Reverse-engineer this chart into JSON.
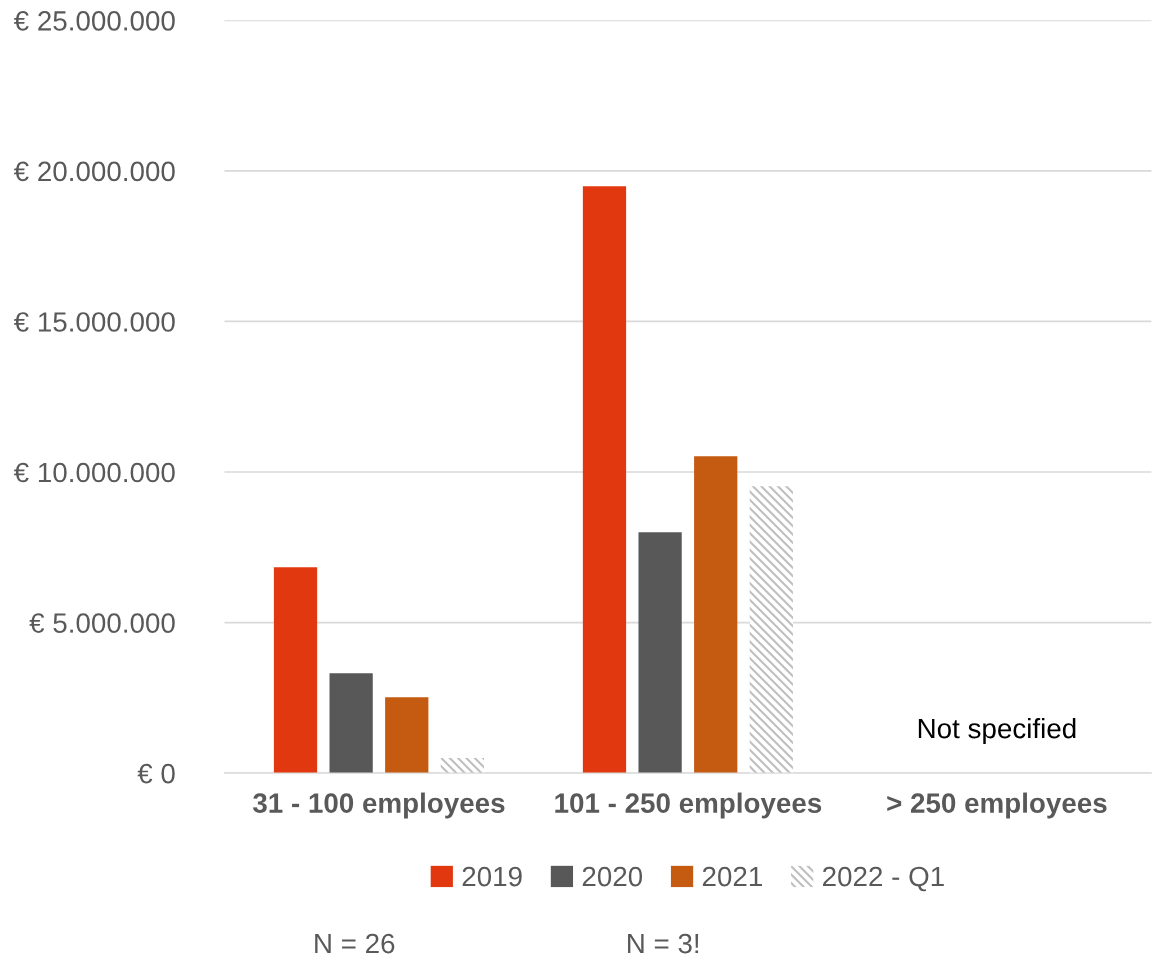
{
  "chart_data": {
    "type": "bar",
    "categories": [
      "31 - 100 employees",
      "101 - 250 employees",
      "> 250 employees"
    ],
    "series": [
      {
        "name": "2019",
        "color": "#e2380f",
        "values": [
          6840000,
          19490000,
          null
        ]
      },
      {
        "name": "2020",
        "color": "#585858",
        "values": [
          3320000,
          8000000,
          null
        ]
      },
      {
        "name": "2021",
        "color": "#c55a11",
        "values": [
          2520000,
          10520000,
          null
        ]
      },
      {
        "name": "2022 - Q1",
        "color": "#bfbfbf",
        "values": [
          500000,
          9530000,
          null
        ]
      }
    ],
    "ylim": [
      0,
      25000000
    ],
    "yticks": [
      {
        "value": 0,
        "label": "€ 0"
      },
      {
        "value": 5000000,
        "label": "€ 5.000.000"
      },
      {
        "value": 10000000,
        "label": "€ 10.000.000"
      },
      {
        "value": 15000000,
        "label": "€ 15.000.000"
      },
      {
        "value": 20000000,
        "label": "€ 20.000.000"
      },
      {
        "value": 25000000,
        "label": "€ 25.000.000"
      }
    ],
    "grid": "y",
    "legend": "bottom",
    "annotations": [
      "Not specified",
      "N = 26",
      "N = 3!"
    ]
  }
}
